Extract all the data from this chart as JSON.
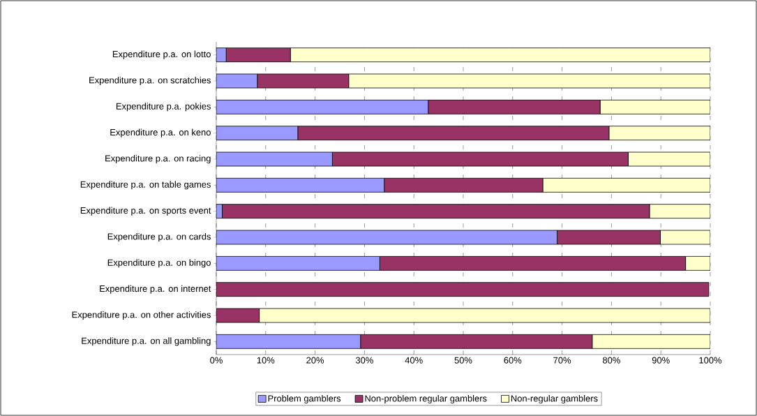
{
  "chart_data": {
    "type": "bar",
    "orientation": "horizontal",
    "stacked": true,
    "categories": [
      "Expenditure p.a. on lotto",
      "Expenditure p.a. on scratchies",
      "Expenditure p.a. pokies",
      "Expenditure p.a. on keno",
      "Expenditure p.a. on racing",
      "Expenditure p.a. on table games",
      "Expenditure p.a. on sports event",
      "Expenditure p.a. on cards",
      "Expenditure p.a. on bingo",
      "Expenditure p.a. on internet",
      "Expenditure p.a. on other activities",
      "Expenditure p.a. on all gambling"
    ],
    "series": [
      {
        "name": "Problem gamblers",
        "color": "#9999ff",
        "values": [
          2.0,
          8.3,
          42.9,
          16.5,
          23.5,
          34.0,
          1.2,
          69.0,
          33.1,
          0,
          0,
          29.2
        ]
      },
      {
        "name": "Non-problem regular gamblers",
        "color": "#993366",
        "values": [
          13.0,
          18.5,
          34.8,
          63.0,
          59.9,
          32.1,
          86.5,
          20.9,
          61.9,
          99.7,
          8.7,
          46.9
        ]
      },
      {
        "name": "Non-regular gamblers",
        "color": "#ffffcc",
        "values": [
          85.0,
          73.2,
          22.3,
          20.5,
          16.6,
          33.9,
          12.3,
          10.1,
          5.0,
          null,
          91.3,
          23.9
        ]
      }
    ],
    "xlim": [
      0,
      100
    ],
    "xticks": [
      {
        "value": 0,
        "label": "0%"
      },
      {
        "value": 10,
        "label": "10%"
      },
      {
        "value": 20,
        "label": "20%"
      },
      {
        "value": 30,
        "label": "30%"
      },
      {
        "value": 40,
        "label": "40%"
      },
      {
        "value": 50,
        "label": "50%"
      },
      {
        "value": 60,
        "label": "60%"
      },
      {
        "value": 70,
        "label": "70%"
      },
      {
        "value": 80,
        "label": "80%"
      },
      {
        "value": 90,
        "label": "90%"
      },
      {
        "value": 100,
        "label": "100%"
      }
    ],
    "grid": "x",
    "legend": "bottom"
  }
}
